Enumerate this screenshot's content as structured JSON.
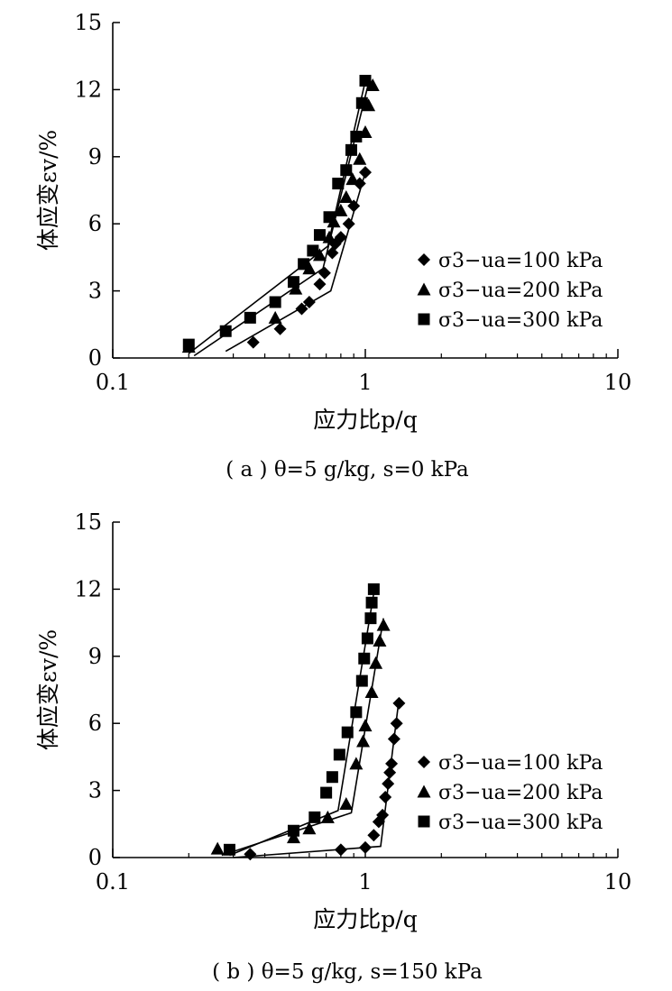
{
  "chart_data": [
    {
      "panel": "a",
      "type": "scatter",
      "caption": "( a ) θ=5 g/kg, s=0 kPa",
      "xlabel": "应力比p/q",
      "ylabel": "体应变εv/%",
      "xscale": "log",
      "xlim": [
        0.1,
        10
      ],
      "ylim": [
        0,
        15
      ],
      "x_ticks": [
        "0.1",
        "1",
        "10"
      ],
      "y_ticks": [
        "0",
        "3",
        "6",
        "9",
        "12",
        "15"
      ],
      "legend_position": "right",
      "series": [
        {
          "name": "σ3−ua=100 kPa",
          "marker": "diamond",
          "points": [
            [
              0.36,
              0.7
            ],
            [
              0.46,
              1.3
            ],
            [
              0.56,
              2.2
            ],
            [
              0.6,
              2.5
            ],
            [
              0.66,
              3.3
            ],
            [
              0.69,
              3.8
            ],
            [
              0.74,
              4.7
            ],
            [
              0.76,
              5.1
            ],
            [
              0.8,
              5.4
            ],
            [
              0.86,
              6.0
            ],
            [
              0.9,
              6.8
            ],
            [
              0.95,
              7.8
            ],
            [
              1.0,
              8.3
            ]
          ],
          "fit": [
            [
              0.28,
              0.3
            ],
            [
              0.73,
              3.0
            ],
            [
              1.0,
              8.3
            ]
          ]
        },
        {
          "name": "σ3−ua=200 kPa",
          "marker": "triangle",
          "points": [
            [
              0.2,
              0.5
            ],
            [
              0.44,
              1.8
            ],
            [
              0.53,
              3.1
            ],
            [
              0.6,
              4.0
            ],
            [
              0.66,
              4.6
            ],
            [
              0.72,
              5.4
            ],
            [
              0.75,
              6.1
            ],
            [
              0.8,
              6.6
            ],
            [
              0.84,
              7.2
            ],
            [
              0.89,
              8.0
            ],
            [
              0.95,
              8.9
            ],
            [
              1.0,
              10.1
            ],
            [
              1.03,
              11.3
            ],
            [
              1.07,
              12.2
            ]
          ],
          "fit": [
            [
              0.21,
              0.1
            ],
            [
              0.68,
              4.0
            ],
            [
              1.03,
              12.3
            ]
          ]
        },
        {
          "name": "σ3−ua=300 kPa",
          "marker": "square",
          "points": [
            [
              0.2,
              0.6
            ],
            [
              0.28,
              1.2
            ],
            [
              0.35,
              1.8
            ],
            [
              0.44,
              2.5
            ],
            [
              0.52,
              3.4
            ],
            [
              0.57,
              4.2
            ],
            [
              0.62,
              4.8
            ],
            [
              0.66,
              5.5
            ],
            [
              0.72,
              6.3
            ],
            [
              0.78,
              7.8
            ],
            [
              0.84,
              8.4
            ],
            [
              0.88,
              9.3
            ],
            [
              0.92,
              9.9
            ],
            [
              0.97,
              11.4
            ],
            [
              1.0,
              12.4
            ]
          ],
          "fit": [
            [
              0.2,
              0.2
            ],
            [
              0.71,
              5.0
            ],
            [
              1.01,
              12.6
            ]
          ]
        }
      ]
    },
    {
      "panel": "b",
      "type": "scatter",
      "caption": "( b ) θ=5 g/kg, s=150 kPa",
      "xlabel": "应力比p/q",
      "ylabel": "体应变εv/%",
      "xscale": "log",
      "xlim": [
        0.1,
        10
      ],
      "ylim": [
        0,
        15
      ],
      "x_ticks": [
        "0.1",
        "1",
        "10"
      ],
      "y_ticks": [
        "0",
        "3",
        "6",
        "9",
        "12",
        "15"
      ],
      "legend_position": "right",
      "series": [
        {
          "name": "σ3−ua=100 kPa",
          "marker": "diamond",
          "points": [
            [
              0.35,
              0.15
            ],
            [
              0.8,
              0.35
            ],
            [
              1.0,
              0.45
            ],
            [
              1.08,
              1.0
            ],
            [
              1.13,
              1.6
            ],
            [
              1.17,
              1.9
            ],
            [
              1.2,
              2.7
            ],
            [
              1.23,
              3.3
            ],
            [
              1.25,
              3.8
            ],
            [
              1.27,
              4.2
            ],
            [
              1.3,
              5.3
            ],
            [
              1.33,
              6.0
            ],
            [
              1.36,
              6.9
            ]
          ],
          "fit": [
            [
              0.3,
              0.0
            ],
            [
              1.15,
              0.5
            ],
            [
              1.36,
              7.1
            ]
          ]
        },
        {
          "name": "σ3−ua=200 kPa",
          "marker": "triangle",
          "points": [
            [
              0.26,
              0.4
            ],
            [
              0.52,
              0.9
            ],
            [
              0.6,
              1.3
            ],
            [
              0.71,
              1.8
            ],
            [
              0.84,
              2.4
            ],
            [
              0.92,
              4.2
            ],
            [
              0.98,
              5.2
            ],
            [
              1.0,
              5.9
            ],
            [
              1.06,
              7.4
            ],
            [
              1.1,
              8.7
            ],
            [
              1.14,
              9.7
            ],
            [
              1.18,
              10.4
            ]
          ],
          "fit": [
            [
              0.27,
              0.1
            ],
            [
              0.88,
              2.0
            ],
            [
              1.18,
              10.7
            ]
          ]
        },
        {
          "name": "σ3−ua=300 kPa",
          "marker": "square",
          "points": [
            [
              0.29,
              0.35
            ],
            [
              0.52,
              1.2
            ],
            [
              0.63,
              1.8
            ],
            [
              0.7,
              2.9
            ],
            [
              0.74,
              3.6
            ],
            [
              0.79,
              4.6
            ],
            [
              0.85,
              5.6
            ],
            [
              0.92,
              6.5
            ],
            [
              0.97,
              7.9
            ],
            [
              0.99,
              8.9
            ],
            [
              1.02,
              9.8
            ],
            [
              1.05,
              10.7
            ],
            [
              1.06,
              11.4
            ],
            [
              1.08,
              12.0
            ]
          ],
          "fit": [
            [
              0.29,
              0.1
            ],
            [
              0.78,
              2.1
            ],
            [
              1.09,
              12.1
            ]
          ]
        }
      ]
    }
  ]
}
